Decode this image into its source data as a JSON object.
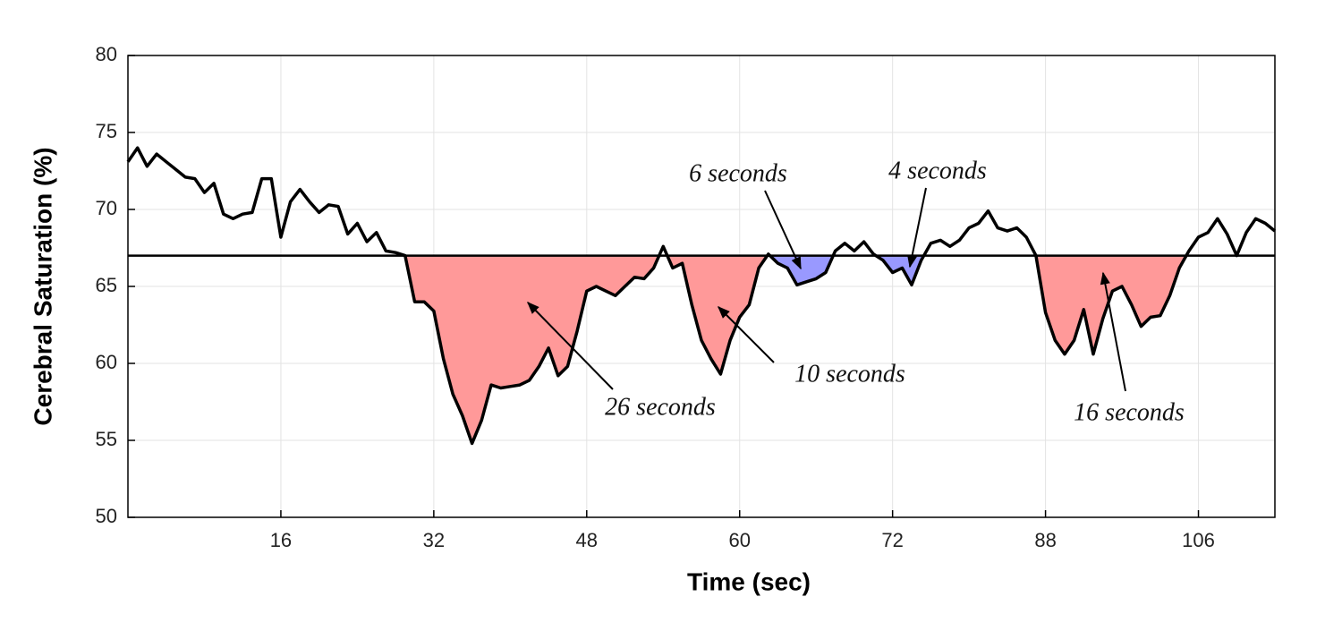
{
  "chart_data": {
    "type": "line",
    "xlabel": "Time (sec)",
    "ylabel": "Cerebral Saturation (%)",
    "xlim": [
      0,
      120
    ],
    "ylim": [
      50,
      80
    ],
    "xticks": [
      16,
      32,
      48,
      {
        "value": 64,
        "label": "60"
      },
      {
        "value": 80,
        "label": "72"
      },
      {
        "value": 96,
        "label": "88"
      },
      {
        "value": 112,
        "label": "106"
      }
    ],
    "yticks": [
      50,
      55,
      60,
      65,
      70,
      75,
      80
    ],
    "grid": true,
    "threshold": 67,
    "x": [
      0,
      1,
      2,
      3,
      4,
      5,
      6,
      7,
      8,
      9,
      10,
      11,
      12,
      13,
      14,
      15,
      16,
      17,
      18,
      19,
      20,
      21,
      22,
      23,
      24,
      25,
      26,
      27,
      28,
      29,
      30,
      31,
      32,
      33,
      34,
      35,
      36,
      37,
      38,
      39,
      40,
      41,
      42,
      43,
      44,
      45,
      46,
      47,
      48,
      49,
      50,
      51,
      52,
      53,
      54,
      55,
      56,
      57,
      58,
      59,
      60,
      61,
      62,
      63,
      64,
      65,
      66,
      67,
      68,
      69,
      70,
      71,
      72,
      73,
      74,
      75,
      76,
      77,
      78,
      79,
      80,
      81,
      82,
      83,
      84,
      85,
      86,
      87,
      88,
      89,
      90,
      91,
      92,
      93,
      94,
      95,
      96,
      97,
      98,
      99,
      100,
      101,
      102,
      103,
      104,
      105,
      106,
      107,
      108,
      109,
      110,
      111,
      112,
      113,
      114,
      115,
      116,
      117,
      118,
      119,
      120
    ],
    "series": [
      {
        "color": "#000000",
        "values": [
          73.1,
          74.0,
          72.8,
          73.6,
          73.1,
          72.6,
          72.1,
          72.0,
          71.1,
          71.7,
          69.7,
          69.4,
          69.7,
          69.8,
          72.0,
          72.0,
          68.2,
          70.5,
          71.3,
          70.5,
          69.8,
          70.3,
          70.2,
          68.4,
          69.1,
          67.9,
          68.5,
          67.3,
          67.2,
          67.0,
          64.0,
          64.0,
          63.4,
          60.3,
          58.0,
          56.6,
          54.8,
          56.3,
          58.6,
          58.4,
          58.5,
          58.6,
          58.9,
          59.8,
          61.0,
          59.2,
          59.8,
          62.1,
          64.7,
          65.0,
          64.7,
          64.4,
          65.0,
          65.6,
          65.5,
          66.2,
          67.6,
          66.2,
          66.5,
          63.8,
          61.5,
          60.3,
          59.3,
          61.5,
          63.0,
          63.8,
          66.2,
          67.1,
          66.5,
          66.2,
          65.1,
          65.3,
          65.5,
          65.9,
          67.3,
          67.8,
          67.3,
          67.9,
          67.1,
          66.7,
          65.9,
          66.2,
          65.1,
          66.7,
          67.8,
          68.0,
          67.6,
          68.0,
          68.8,
          69.1,
          69.9,
          68.8,
          68.6,
          68.8,
          68.2,
          67.0,
          63.3,
          61.5,
          60.6,
          61.5,
          63.5,
          60.6,
          62.9,
          64.7,
          65.0,
          63.8,
          62.4,
          63.0,
          63.1,
          64.4,
          66.2,
          67.3,
          68.2,
          68.5,
          69.4,
          68.4,
          67.0,
          68.5,
          69.4,
          69.1,
          68.6
        ]
      }
    ],
    "fill_colors": [
      "#ff9999",
      "#ff9999",
      "#9999ff",
      "#9999ff",
      "#ff9999"
    ],
    "annotations": [
      "26 seconds",
      "10 seconds",
      "6 seconds",
      "4 seconds",
      "16 seconds"
    ]
  }
}
